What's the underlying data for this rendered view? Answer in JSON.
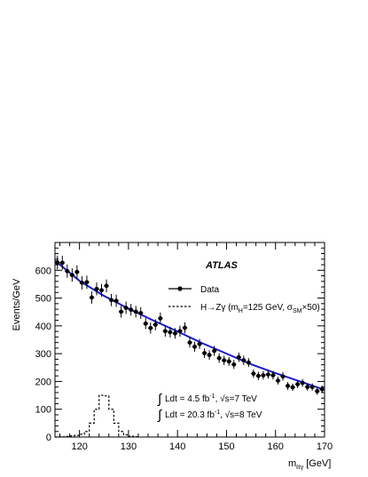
{
  "chart_data": {
    "type": "scatter",
    "experiment_label": "ATLAS",
    "xlabel": "m",
    "xlabel_sub": "ℓℓγ",
    "xlabel_unit": "[GeV]",
    "ylabel": "Events/GeV",
    "xlim": [
      115,
      170
    ],
    "ylim": [
      0,
      700
    ],
    "x_ticks": [
      120,
      130,
      140,
      150,
      160,
      170
    ],
    "y_ticks": [
      0,
      100,
      200,
      300,
      400,
      500,
      600
    ],
    "grid": false,
    "legend_position": "top-right",
    "legend": {
      "data_label": "Data",
      "signal_label": "H→Zγ (m",
      "signal_label_sub1": "H",
      "signal_label_mid": "=125 GeV, σ",
      "signal_label_sub2": "SM",
      "signal_label_end": "×50)"
    },
    "lumi_lines": [
      {
        "pre": "Ldt = 4.5 fb",
        "sup": "-1",
        "post": ", √s=7 TeV"
      },
      {
        "pre": "Ldt = 20.3 fb",
        "sup": "-1",
        "post": ", √s=8 TeV"
      }
    ],
    "colors": {
      "fit": "#1a1acc",
      "data": "#000000",
      "signal": "#000000"
    },
    "series": [
      {
        "name": "Data",
        "kind": "points_with_errors",
        "x": [
          115.5,
          116.5,
          117.5,
          118.5,
          119.5,
          120.5,
          121.5,
          122.5,
          123.5,
          124.5,
          125.5,
          126.5,
          127.5,
          128.5,
          129.5,
          130.5,
          131.5,
          132.5,
          133.5,
          134.5,
          135.5,
          136.5,
          137.5,
          138.5,
          139.5,
          140.5,
          141.5,
          142.5,
          143.5,
          144.5,
          145.5,
          146.5,
          147.5,
          148.5,
          149.5,
          150.5,
          151.5,
          152.5,
          153.5,
          154.5,
          155.5,
          156.5,
          157.5,
          158.5,
          159.5,
          160.5,
          161.5,
          162.5,
          163.5,
          164.5,
          165.5,
          166.5,
          167.5,
          168.5,
          169.5
        ],
        "y": [
          628,
          627,
          597,
          583,
          594,
          555,
          557,
          502,
          533,
          528,
          544,
          493,
          490,
          451,
          465,
          458,
          451,
          446,
          408,
          392,
          404,
          427,
          381,
          377,
          373,
          381,
          393,
          340,
          325,
          335,
          302,
          295,
          310,
          284,
          276,
          272,
          261,
          287,
          276,
          268,
          228,
          220,
          222,
          225,
          222,
          203,
          218,
          184,
          179,
          190,
          195,
          180,
          180,
          165,
          172
        ],
        "err": [
          25,
          25,
          24,
          24,
          24,
          24,
          24,
          22,
          23,
          23,
          23,
          22,
          22,
          21,
          22,
          21,
          21,
          21,
          20,
          20,
          20,
          21,
          20,
          19,
          19,
          20,
          20,
          18,
          18,
          18,
          17,
          17,
          18,
          17,
          17,
          16,
          16,
          17,
          17,
          16,
          15,
          15,
          15,
          15,
          15,
          14,
          15,
          14,
          13,
          14,
          14,
          13,
          13,
          13,
          13
        ]
      },
      {
        "name": "Fit",
        "kind": "line",
        "x": [
          115,
          120,
          125,
          130,
          135,
          140,
          145,
          150,
          155,
          160,
          165,
          170
        ],
        "y": [
          635,
          562,
          508,
          462,
          420,
          380,
          338,
          300,
          262,
          230,
          200,
          170
        ]
      },
      {
        "name": "H→Zγ (m_H=125 GeV, σ_SM×50)",
        "kind": "step",
        "edges": [
          115,
          116,
          117,
          118,
          119,
          120,
          121,
          122,
          123,
          124,
          125,
          126,
          127,
          128,
          129,
          130,
          131,
          132
        ],
        "y": [
          0,
          1,
          2,
          4,
          6,
          10,
          20,
          50,
          100,
          150,
          148,
          100,
          50,
          20,
          8,
          3,
          1
        ]
      }
    ]
  }
}
